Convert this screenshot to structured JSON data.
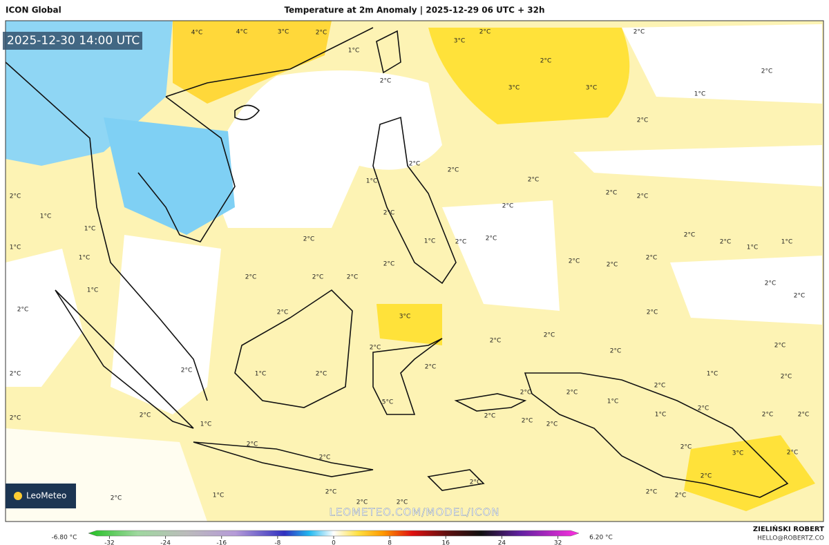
{
  "header": {
    "model": "ICON Global",
    "title": "Temperature at 2m Anomaly | 2025-12-29 06 UTC + 32h"
  },
  "valid_time": "2025-12-30 14:00 UTC",
  "watermark": "LEOMETEO.COM/MODEL/ICON",
  "logo": "LeoMeteo",
  "author": {
    "name": "ZIELIŃSKI ROBERT",
    "email": "HELLO@ROBERTZ.CO"
  },
  "colorbar": {
    "min_label": "-6.80 °C",
    "max_label": "6.20 °C",
    "lim": [
      -35,
      35
    ],
    "ticks": [
      -32,
      -24,
      -16,
      -8,
      0,
      8,
      16,
      24,
      32
    ]
  },
  "map_labels": [
    "4°C",
    "4°C",
    "3°C",
    "2°C",
    "1°C",
    "2°C",
    "3°C",
    "2°C",
    "2°C",
    "2°C",
    "3°C",
    "3°C",
    "2°C",
    "1°C",
    "2°C",
    "2°C",
    "2°C",
    "2°C",
    "1°C",
    "2°C",
    "2°C",
    "2°C",
    "2°C",
    "1°C",
    "1°C",
    "1°C",
    "2°C",
    "2°C",
    "1°C",
    "2°C",
    "2°C",
    "2°C",
    "2°C",
    "1°C",
    "1°C",
    "1°C",
    "2°C",
    "2°C",
    "2°C",
    "2°C",
    "2°C",
    "2°C",
    "2°C",
    "1°C",
    "2°C",
    "2°C",
    "2°C",
    "2°C",
    "3°C",
    "2°C",
    "2°C",
    "2°C",
    "2°C",
    "2°C",
    "2°C",
    "2°C",
    "2°C",
    "1°C",
    "2°C",
    "2°C",
    "1°C",
    "2°C",
    "2°C",
    "2°C",
    "2°C",
    "1°C",
    "5°C",
    "2°C",
    "1°C",
    "2°C",
    "2°C",
    "1°C",
    "2°C",
    "2°C",
    "2°C",
    "2°C",
    "2°C",
    "2°C",
    "2°C",
    "2°C",
    "3°C",
    "2°C",
    "2°C",
    "2°C",
    "2°C",
    "1°C",
    "2°C",
    "2°C",
    "2°C",
    "2°C",
    "2°C"
  ]
}
